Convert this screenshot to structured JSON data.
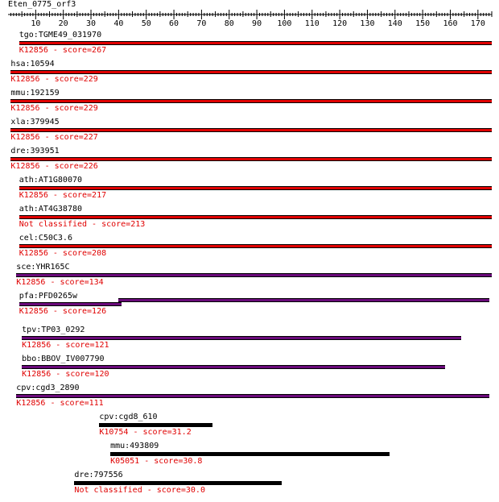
{
  "title": "Eten_0775_orf3",
  "axis": {
    "min": 0,
    "max": 175,
    "tick_labels": [
      10,
      20,
      30,
      40,
      50,
      60,
      70,
      80,
      90,
      100,
      110,
      120,
      130,
      140,
      150,
      160,
      170
    ]
  },
  "colors": {
    "score_text": "#e00000",
    "red_bar": "#e00000",
    "purple_bar": "#6a0a7a",
    "black_bar": "#000000"
  },
  "hits": [
    {
      "label": "tgo:TGME49_031970",
      "score_text": "K12856 - score=267",
      "start": 4,
      "end": 175,
      "color": "red"
    },
    {
      "label": "hsa:10594",
      "score_text": "K12856 - score=229",
      "start": 1,
      "end": 175,
      "color": "red"
    },
    {
      "label": "mmu:192159",
      "score_text": "K12856 - score=229",
      "start": 1,
      "end": 175,
      "color": "red"
    },
    {
      "label": "xla:379945",
      "score_text": "K12856 - score=227",
      "start": 1,
      "end": 175,
      "color": "red"
    },
    {
      "label": "dre:393951",
      "score_text": "K12856 - score=226",
      "start": 1,
      "end": 175,
      "color": "red"
    },
    {
      "label": "ath:AT1G80070",
      "score_text": "K12856 - score=217",
      "start": 4,
      "end": 175,
      "color": "red"
    },
    {
      "label": "ath:AT4G38780",
      "score_text": "Not classified - score=213",
      "start": 4,
      "end": 175,
      "color": "red"
    },
    {
      "label": "cel:C50C3.6",
      "score_text": "K12856 - score=208",
      "start": 4,
      "end": 175,
      "color": "red"
    },
    {
      "label": "sce:YHR165C",
      "score_text": "K12856 - score=134",
      "start": 3,
      "end": 175,
      "color": "purple"
    },
    {
      "label": "pfa:PFD0265w",
      "score_text": "K12856 - score=126",
      "start": 4,
      "end": 174,
      "color": "purple",
      "segments": [
        [
          40,
          174
        ],
        [
          4,
          41
        ]
      ]
    },
    {
      "label": "tpv:TP03_0292",
      "score_text": "K12856 - score=121",
      "start": 5,
      "end": 164,
      "color": "purple"
    },
    {
      "label": "bbo:BBOV_IV007790",
      "score_text": "K12856 - score=120",
      "start": 5,
      "end": 158,
      "color": "purple"
    },
    {
      "label": "cpv:cgd3_2890",
      "score_text": "K12856 - score=111",
      "start": 3,
      "end": 174,
      "color": "purple"
    },
    {
      "label": "cpv:cgd8_610",
      "score_text": "K10754 - score=31.2",
      "start": 33,
      "end": 74,
      "color": "black"
    },
    {
      "label": "mmu:493809",
      "score_text": "K05051 - score=30.8",
      "start": 37,
      "end": 138,
      "color": "black"
    },
    {
      "label": "dre:797556",
      "score_text": "Not classified - score=30.0",
      "start": 24,
      "end": 99,
      "color": "black"
    }
  ]
}
